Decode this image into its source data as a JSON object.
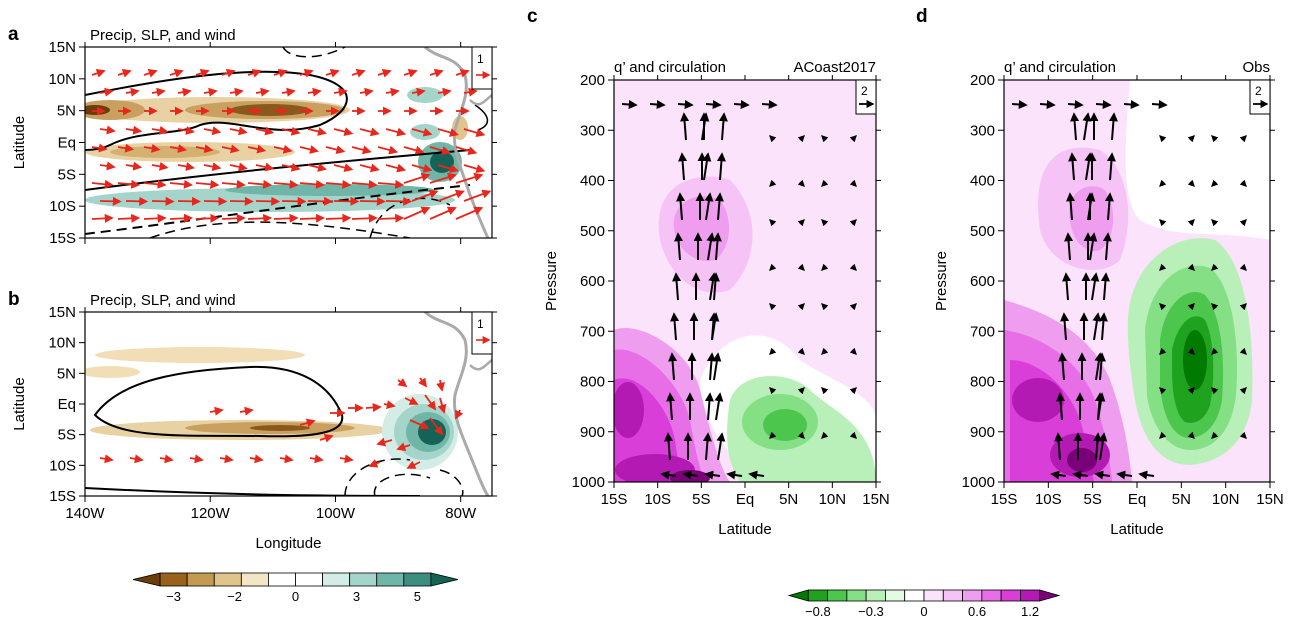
{
  "panels": {
    "a": {
      "letter": "a",
      "title": "Precip, SLP, and wind",
      "ref_value": "1"
    },
    "b": {
      "letter": "b",
      "title": "Precip, SLP, and wind",
      "ref_value": "1"
    },
    "c": {
      "letter": "c",
      "title_left": "q’ and circulation",
      "title_right": "ACoast2017",
      "ref_value": "2"
    },
    "d": {
      "letter": "d",
      "title_left": "q’ and circulation",
      "title_right": "Obs",
      "ref_value": "2"
    }
  },
  "colorbars": {
    "precip": {
      "labels": [
        "−3",
        "−2",
        "0",
        "3",
        "5"
      ],
      "colors": [
        "#6b3d0a",
        "#99621c",
        "#c39a4f",
        "#e1c48c",
        "#f3e6c6",
        "#ffffff",
        "#ffffff",
        "#d4ece6",
        "#a5d5ca",
        "#6fb6a8",
        "#3c8f80",
        "#156356"
      ]
    },
    "q": {
      "labels": [
        "−0.8",
        "−0.3",
        "0",
        "0.6",
        "1.2"
      ],
      "colors": [
        "#007a00",
        "#1fa31f",
        "#4cc64c",
        "#85df85",
        "#b9f0b9",
        "#e2fbe2",
        "#ffffff",
        "#fbe3fb",
        "#f6c3f6",
        "#ef9def",
        "#e76ee7",
        "#d93ed9",
        "#b31ab3",
        "#7a007a"
      ]
    }
  },
  "chart_data": [
    {
      "type": "contour_map",
      "panel": "a",
      "title": "Precip, SLP, and wind",
      "xlabel": "",
      "ylabel": "Latitude",
      "xlim": [
        -140,
        -75
      ],
      "ylim": [
        -15,
        15
      ],
      "x_ticks": [
        "140W",
        "120W",
        "100W",
        "80W"
      ],
      "y_ticks": [
        "15N",
        "10N",
        "5N",
        "Eq",
        "5S",
        "10S",
        "15S"
      ],
      "reference_vector": 1
    },
    {
      "type": "contour_map",
      "panel": "b",
      "title": "Precip, SLP, and wind",
      "xlabel": "Longitude",
      "ylabel": "Latitude",
      "xlim": [
        -140,
        -75
      ],
      "ylim": [
        -15,
        15
      ],
      "x_ticks": [
        "140W",
        "120W",
        "100W",
        "80W"
      ],
      "y_ticks": [
        "15N",
        "10N",
        "5N",
        "Eq",
        "5S",
        "10S",
        "15S"
      ],
      "reference_vector": 1
    },
    {
      "type": "contour_section",
      "panel": "c",
      "title": "q’ and circulation",
      "subtitle": "ACoast2017",
      "xlabel": "Latitude",
      "ylabel": "Pressure",
      "xlim": [
        -15,
        15
      ],
      "ylim": [
        1000,
        200
      ],
      "x_ticks": [
        "15S",
        "10S",
        "5S",
        "Eq",
        "5N",
        "10N",
        "15N"
      ],
      "y_ticks": [
        "200",
        "300",
        "400",
        "500",
        "600",
        "700",
        "800",
        "900",
        "1000"
      ],
      "reference_vector": 2
    },
    {
      "type": "contour_section",
      "panel": "d",
      "title": "q’ and circulation",
      "subtitle": "Obs",
      "xlabel": "Latitude",
      "ylabel": "Pressure",
      "xlim": [
        -15,
        15
      ],
      "ylim": [
        1000,
        200
      ],
      "x_ticks": [
        "15S",
        "10S",
        "5S",
        "Eq",
        "5N",
        "10N",
        "15N"
      ],
      "y_ticks": [
        "200",
        "300",
        "400",
        "500",
        "600",
        "700",
        "800",
        "900",
        "1000"
      ],
      "reference_vector": 2
    }
  ]
}
